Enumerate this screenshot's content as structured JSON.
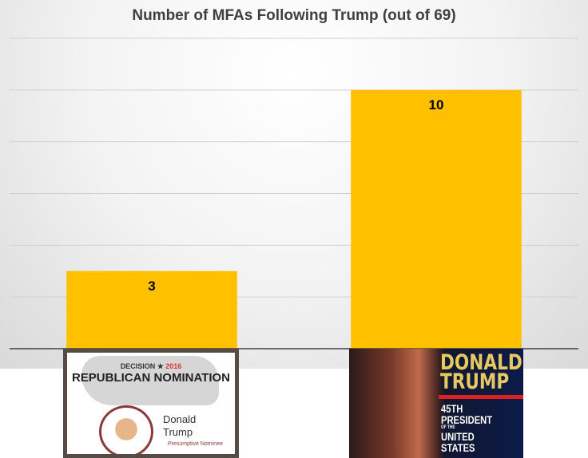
{
  "chart_data": {
    "type": "bar",
    "title": "Number of MFAs Following Trump (out of 69)",
    "categories": [
      "Republican Nomination (image)",
      "45th President (image)"
    ],
    "values": [
      3,
      10
    ],
    "data_labels": [
      "3",
      "10"
    ],
    "ylim": [
      0,
      12
    ],
    "grid": true,
    "gridline_step": 2,
    "bar_color": "#ffc000",
    "xlabel": "",
    "ylabel": "",
    "legend": "none"
  },
  "category_images": [
    {
      "decision": "DECISION",
      "year": "2016",
      "headline": "REPUBLICAN NOMINATION",
      "name_first": "Donald",
      "name_last": "Trump",
      "status": "Presumptive Nominee"
    },
    {
      "headline1": "DONALD",
      "headline2": "TRUMP",
      "line1": "45TH",
      "line2": "PRESIDENT",
      "line3": "OF THE",
      "line4": "UNITED",
      "line5": "STATES"
    }
  ]
}
